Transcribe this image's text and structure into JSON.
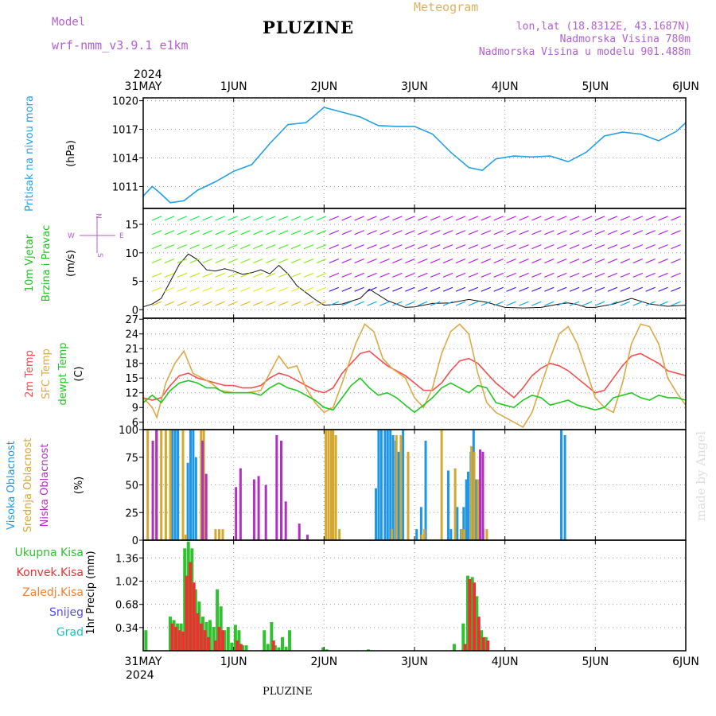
{
  "header": {
    "model_label": "Model",
    "model_name": "wrf-nmm_v3.9.1 e1km",
    "title": "PLUZINE",
    "meteogram_label": "Meteogram",
    "coords": "lon,lat (18.8312E, 43.1687N)",
    "altitude": "Nadmorska Visina 780m",
    "model_altitude": "Nadmorska Visina u modelu 901.488m",
    "footer": "PLUZINE",
    "credit": "made by Angel"
  },
  "colors": {
    "pressure": "#22a0e6",
    "temp2m": "#f05050",
    "sfc": "#dca848",
    "dew": "#20c820",
    "high_cloud": "#1e96e6",
    "mid_cloud": "#d4a830",
    "low_cloud": "#b030c0",
    "precip_total": "#30c030",
    "precip_conv": "#f03030",
    "precip_frz": "#f08030",
    "snow": "#5050e0",
    "hail": "#20c0c0",
    "header_purple": "#b060d0",
    "header_orange": "#e0b060"
  },
  "chart_data": [
    {
      "type": "line",
      "panel": "pressure",
      "ylabel_lines": [
        "Pritisak na nivou mora",
        "(hPa)"
      ],
      "x_ticks": [
        "31MAY",
        "1JUN",
        "2JUN",
        "3JUN",
        "4JUN",
        "5JUN",
        "6JUN"
      ],
      "top_year": "2024",
      "ylim": [
        1008.7,
        1020.3
      ],
      "y_ticks": [
        1011,
        1014,
        1017,
        1020
      ],
      "grid": true,
      "series": [
        {
          "key": "pressure",
          "x": [
            0,
            0.1,
            0.2,
            0.3,
            0.45,
            0.6,
            0.8,
            1.0,
            1.2,
            1.4,
            1.6,
            1.8,
            2.0,
            2.2,
            2.4,
            2.6,
            2.8,
            3.0,
            3.2,
            3.4,
            3.6,
            3.75,
            3.9,
            4.1,
            4.3,
            4.5,
            4.7,
            4.9,
            5.1,
            5.3,
            5.5,
            5.7,
            5.9,
            6.0
          ],
          "y": [
            1010,
            1011,
            1010.2,
            1009.3,
            1009.5,
            1010.6,
            1011.5,
            1012.6,
            1013.3,
            1015.5,
            1017.5,
            1017.7,
            1019.3,
            1018.8,
            1018.3,
            1017.4,
            1017.3,
            1017.3,
            1016.5,
            1014.6,
            1013,
            1012.7,
            1013.9,
            1014.2,
            1014.1,
            1014.2,
            1013.6,
            1014.6,
            1016.3,
            1016.7,
            1016.5,
            1015.8,
            1016.8,
            1017.7
          ]
        }
      ]
    },
    {
      "type": "line",
      "panel": "wind",
      "ylabel_lines": [
        "10m Vjetar",
        "Brzina i Pravac",
        "(m/s)"
      ],
      "compass": {
        "n": "N",
        "w": "W",
        "e": "E",
        "s": "S"
      },
      "ylim": [
        -1.5,
        17.8
      ],
      "y_ticks": [
        0,
        5,
        10,
        15
      ],
      "grid": true,
      "series": [
        {
          "key": "wind_speed",
          "x": [
            0,
            0.1,
            0.2,
            0.3,
            0.4,
            0.5,
            0.6,
            0.7,
            0.8,
            0.9,
            1.0,
            1.1,
            1.2,
            1.3,
            1.4,
            1.5,
            1.6,
            1.7,
            1.8,
            1.9,
            2.0,
            2.2,
            2.4,
            2.5,
            2.7,
            2.9,
            3.0,
            3.2,
            3.4,
            3.6,
            3.8,
            4.0,
            4.2,
            4.4,
            4.6,
            4.7,
            4.8,
            4.9,
            5.0,
            5.2,
            5.4,
            5.6,
            5.8,
            6.0
          ],
          "y": [
            0.5,
            1,
            2,
            5,
            8,
            9.8,
            8.8,
            7,
            6.8,
            7.2,
            6.8,
            6.2,
            6.5,
            7.0,
            6.3,
            7.8,
            6.3,
            4.2,
            3,
            1.8,
            0.8,
            1.0,
            2.0,
            3.6,
            1.6,
            0.4,
            0.5,
            1.1,
            1.2,
            1.8,
            1.3,
            0.4,
            0.3,
            0.4,
            1.0,
            1.2,
            0.9,
            0.4,
            0.4,
            1.0,
            2.0,
            1.0,
            0.6,
            0.8
          ]
        }
      ]
    },
    {
      "type": "line",
      "panel": "temperature",
      "ylabel_lines": [
        "2m Temp",
        "SFC Temp",
        "dewpt Temp",
        "(C)"
      ],
      "ylim": [
        4.5,
        27.2
      ],
      "y_ticks": [
        6,
        9,
        12,
        15,
        18,
        21,
        24,
        27
      ],
      "grid": true,
      "series": [
        {
          "key": "temp2m",
          "name": "2m Temp",
          "x": [
            0,
            0.1,
            0.2,
            0.3,
            0.4,
            0.5,
            0.6,
            0.7,
            0.8,
            0.9,
            1.0,
            1.1,
            1.2,
            1.3,
            1.4,
            1.5,
            1.6,
            1.7,
            1.8,
            1.9,
            2.0,
            2.1,
            2.2,
            2.3,
            2.4,
            2.5,
            2.6,
            2.7,
            2.8,
            2.9,
            3.0,
            3.1,
            3.2,
            3.3,
            3.4,
            3.5,
            3.6,
            3.7,
            3.8,
            3.9,
            4.0,
            4.1,
            4.2,
            4.3,
            4.4,
            4.5,
            4.6,
            4.7,
            4.8,
            4.9,
            5.0,
            5.1,
            5.2,
            5.3,
            5.4,
            5.5,
            5.6,
            5.7,
            5.8,
            5.9,
            6.0
          ],
          "y": [
            11,
            10.5,
            11,
            13.5,
            15.5,
            16,
            15,
            14.5,
            14,
            13.5,
            13.5,
            13,
            13,
            13.5,
            15,
            16,
            15.5,
            14.5,
            13.5,
            12.5,
            12,
            13,
            16,
            18,
            20,
            20.5,
            19,
            17.5,
            16.5,
            15.5,
            14,
            12.5,
            12.5,
            14,
            16.5,
            18.5,
            19,
            18,
            16,
            14,
            12.5,
            11,
            13,
            15.5,
            17,
            18,
            17.5,
            16.5,
            15,
            13.5,
            12,
            12.5,
            15,
            17.5,
            19.5,
            20,
            19,
            18,
            16.5,
            16,
            15.5
          ]
        },
        {
          "key": "sfc",
          "name": "SFC Temp",
          "x": [
            0,
            0.1,
            0.15,
            0.25,
            0.35,
            0.45,
            0.55,
            0.65,
            0.75,
            0.85,
            1.0,
            1.15,
            1.3,
            1.4,
            1.5,
            1.6,
            1.7,
            1.8,
            1.9,
            2.0,
            2.1,
            2.2,
            2.35,
            2.45,
            2.55,
            2.65,
            2.75,
            2.9,
            3.0,
            3.1,
            3.2,
            3.3,
            3.4,
            3.5,
            3.6,
            3.7,
            3.8,
            3.9,
            4.0,
            4.1,
            4.2,
            4.3,
            4.5,
            4.6,
            4.7,
            4.8,
            5.0,
            5.1,
            5.2,
            5.3,
            5.4,
            5.5,
            5.6,
            5.7,
            5.8,
            5.9,
            6.0
          ],
          "y": [
            11,
            9,
            7,
            14,
            18,
            20.5,
            16,
            15,
            14,
            12.5,
            12,
            12,
            12.5,
            16,
            19.5,
            17,
            17.5,
            13,
            10,
            8,
            9,
            14,
            22,
            26,
            24.5,
            19,
            17,
            15,
            11,
            9,
            13,
            20,
            24.5,
            26,
            24,
            16,
            10,
            8,
            7,
            6,
            5,
            8,
            19,
            24,
            25.5,
            22,
            11,
            9,
            8,
            14,
            22,
            26,
            25.5,
            22,
            15,
            12,
            9.5
          ]
        },
        {
          "key": "dew",
          "name": "dewpt Temp",
          "x": [
            0,
            0.1,
            0.2,
            0.3,
            0.4,
            0.5,
            0.6,
            0.7,
            0.8,
            0.9,
            1.0,
            1.1,
            1.2,
            1.3,
            1.4,
            1.5,
            1.6,
            1.7,
            1.8,
            1.9,
            2.0,
            2.1,
            2.2,
            2.3,
            2.4,
            2.5,
            2.6,
            2.7,
            2.8,
            2.9,
            3.0,
            3.1,
            3.2,
            3.3,
            3.4,
            3.5,
            3.6,
            3.7,
            3.8,
            3.9,
            4.0,
            4.1,
            4.2,
            4.3,
            4.4,
            4.5,
            4.6,
            4.7,
            4.8,
            4.9,
            5.0,
            5.1,
            5.2,
            5.3,
            5.4,
            5.5,
            5.6,
            5.7,
            5.8,
            5.9,
            6.0
          ],
          "y": [
            10,
            11.5,
            10,
            12.5,
            14,
            14.5,
            14,
            13,
            13,
            12,
            12,
            12,
            12,
            11.5,
            13,
            14,
            13,
            12.5,
            11.5,
            10.5,
            9,
            8.5,
            11,
            13.5,
            15,
            13,
            11.5,
            12,
            11,
            9.5,
            8,
            9.5,
            11,
            13,
            14,
            13,
            12,
            13.5,
            13,
            10,
            9.5,
            9,
            10.5,
            11.5,
            11,
            9.5,
            10,
            10.5,
            9.5,
            9,
            8.5,
            9,
            11,
            11.5,
            12,
            11,
            10.5,
            11.5,
            11,
            11,
            10.5
          ]
        }
      ]
    },
    {
      "type": "bar",
      "panel": "clouds",
      "ylabel_lines": [
        "Visoka Oblacnost",
        "Srednja Oblacnost",
        "Niska Oblacnost",
        "(%)"
      ],
      "ylim": [
        0,
        100
      ],
      "y_ticks": [
        0,
        25,
        50,
        75,
        100
      ],
      "grid": true,
      "series": [
        {
          "key": "high_cloud",
          "name": "Visoka Oblacnost",
          "x": [
            0.35,
            0.38,
            0.41,
            0.52,
            0.55,
            0.58,
            0.61,
            2.6,
            2.63,
            2.66,
            2.7,
            2.73,
            2.76,
            2.79,
            2.82,
            2.85,
            2.9,
            3.05,
            3.1,
            3.15,
            3.4,
            3.43,
            3.5,
            3.54,
            3.57,
            3.6,
            3.62,
            3.65,
            3.68,
            3.71,
            4.65,
            4.69
          ],
          "y": [
            100,
            100,
            100,
            70,
            100,
            100,
            75,
            47,
            100,
            100,
            100,
            100,
            100,
            95,
            90,
            80,
            100,
            10,
            30,
            90,
            63,
            10,
            30,
            10,
            30,
            55,
            62,
            80,
            100,
            55,
            100,
            95
          ]
        },
        {
          "key": "mid_cloud",
          "name": "Srednja Oblacnost",
          "x": [
            0.05,
            0.15,
            0.2,
            0.25,
            0.3,
            0.44,
            0.47,
            0.64,
            0.67,
            0.8,
            0.84,
            0.88,
            2.02,
            2.05,
            2.08,
            2.1,
            2.13,
            2.17,
            2.75,
            2.8,
            2.85,
            2.93,
            3.08,
            3.11,
            3.3,
            3.45,
            3.52,
            3.55,
            3.63,
            3.66,
            3.7,
            3.72,
            3.76,
            3.8
          ],
          "y": [
            100,
            100,
            100,
            100,
            100,
            100,
            5,
            100,
            100,
            10,
            10,
            10,
            100,
            100,
            100,
            100,
            95,
            10,
            10,
            95,
            95,
            80,
            5,
            10,
            100,
            65,
            10,
            10,
            85,
            80,
            55,
            55,
            10,
            10
          ]
        },
        {
          "key": "low_cloud",
          "name": "Niska Oblacnost",
          "x": [
            0.08,
            0.12,
            0.63,
            0.67,
            1.0,
            1.05,
            1.2,
            1.25,
            1.33,
            1.45,
            1.5,
            1.55,
            1.7,
            1.79,
            3.7,
            3.73
          ],
          "y": [
            90,
            100,
            90,
            60,
            48,
            65,
            55,
            58,
            50,
            95,
            90,
            35,
            15,
            5,
            82,
            80
          ]
        }
      ]
    },
    {
      "type": "bar",
      "panel": "precipitation",
      "ylabel_lines": [
        "1hr Precip (mm)"
      ],
      "legend_lines": [
        "Ukupna Kisa",
        "Konvek.Kisa",
        "Zaledj.Kisa",
        "Snijeg",
        "Grad"
      ],
      "x_ticks": [
        "31MAY",
        "1JUN",
        "2JUN",
        "3JUN",
        "4JUN",
        "5JUN",
        "6JUN"
      ],
      "bottom_year": "2024",
      "ylim": [
        0,
        1.62
      ],
      "y_ticks": [
        0.34,
        0.68,
        1.02,
        1.36
      ],
      "grid": true,
      "series": [
        {
          "key": "precip_total",
          "name": "Ukupna Kisa",
          "x": [
            0.04,
            0.31,
            0.35,
            0.39,
            0.43,
            0.47,
            0.51,
            0.55,
            0.59,
            0.63,
            0.67,
            0.71,
            0.75,
            0.79,
            0.83,
            0.87,
            0.91,
            0.95,
            0.99,
            1.03,
            1.07,
            1.11,
            1.15,
            1.35,
            1.39,
            1.43,
            1.47,
            1.51,
            1.55,
            1.59,
            1.63,
            2.0,
            2.04,
            2.5,
            3.45,
            3.55,
            3.6,
            3.65,
            3.7,
            3.75,
            3.8
          ],
          "y": [
            0.3,
            0.5,
            0.45,
            0.4,
            0.4,
            1.5,
            1.6,
            1.5,
            0.9,
            0.72,
            0.5,
            0.42,
            0.45,
            0.35,
            0.9,
            0.65,
            0.3,
            0.35,
            0.12,
            0.38,
            0.3,
            0.08,
            0.08,
            0.3,
            0.1,
            0.42,
            0.08,
            0.05,
            0.2,
            0.06,
            0.3,
            0.05,
            0.02,
            0.02,
            0.1,
            0.4,
            1.1,
            1.08,
            0.8,
            0.3,
            0.2
          ]
        },
        {
          "key": "precip_conv",
          "name": "Konvek.Kisa",
          "x": [
            0.31,
            0.35,
            0.39,
            0.43,
            0.47,
            0.51,
            0.55,
            0.59,
            0.63,
            0.67,
            0.71,
            0.79,
            0.83,
            0.87,
            1.03,
            1.07,
            1.43,
            3.55,
            3.6,
            3.65,
            3.7,
            3.75,
            3.8
          ],
          "y": [
            0.4,
            0.35,
            0.3,
            0.28,
            1.1,
            1.3,
            1.0,
            0.55,
            0.4,
            0.3,
            0.2,
            0.15,
            0.35,
            0.3,
            0.15,
            0.1,
            0.15,
            0.1,
            1.05,
            1.0,
            0.5,
            0.2,
            0.15
          ]
        }
      ]
    }
  ]
}
